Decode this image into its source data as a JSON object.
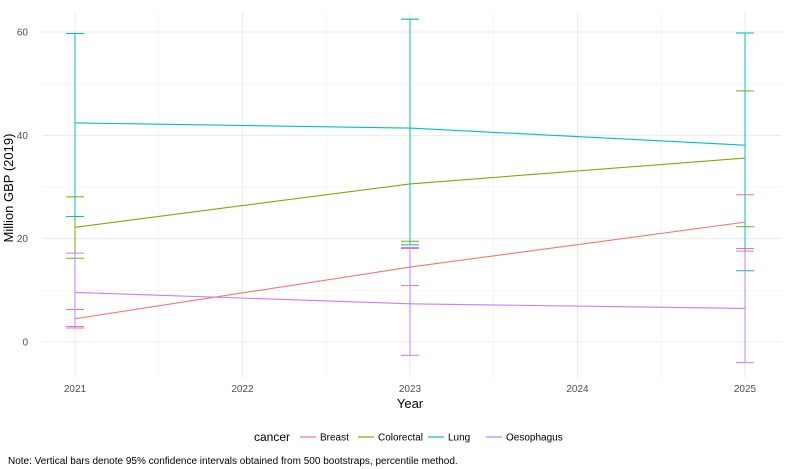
{
  "chart_data": {
    "type": "line",
    "xlabel": "Year",
    "ylabel": "Million GBP (2019)",
    "x_ticks": [
      "2021",
      "2022",
      "2023",
      "2024",
      "2025"
    ],
    "y_ticks": [
      "0",
      "20",
      "40",
      "60"
    ],
    "xlim": [
      2021,
      2025
    ],
    "ylim": [
      -6,
      64
    ],
    "grid": true,
    "legend_title": "cancer",
    "legend_position": "bottom",
    "error_bars": "95% confidence intervals",
    "series": [
      {
        "name": "Breast",
        "color": "#F8766D",
        "x": [
          2021,
          2023,
          2025
        ],
        "y": [
          4.5,
          14.5,
          23.2
        ],
        "lower": [
          2.7,
          10.9,
          18.1
        ],
        "upper": [
          6.3,
          18.1,
          28.5
        ]
      },
      {
        "name": "Colorectal",
        "color": "#7CAE00",
        "x": [
          2021,
          2023,
          2025
        ],
        "y": [
          22.2,
          30.6,
          35.6
        ],
        "lower": [
          16.2,
          19.5,
          22.3
        ],
        "upper": [
          28.1,
          62.5,
          48.6
        ]
      },
      {
        "name": "Lung",
        "color": "#00BFC4",
        "x": [
          2021,
          2023,
          2025
        ],
        "y": [
          42.4,
          41.4,
          38.1
        ],
        "lower": [
          24.3,
          18.8,
          13.8
        ],
        "upper": [
          59.7,
          62.5,
          59.8
        ]
      },
      {
        "name": "Oesophagus",
        "color": "#C77CFF",
        "x": [
          2021,
          2023,
          2025
        ],
        "y": [
          9.6,
          7.4,
          6.5
        ],
        "lower": [
          3.0,
          -2.6,
          -4.0
        ],
        "upper": [
          17.2,
          18.3,
          17.6
        ]
      }
    ]
  },
  "note": "Note: Vertical bars denote 95% confidence intervals obtained from 500 bootstraps, percentile method."
}
